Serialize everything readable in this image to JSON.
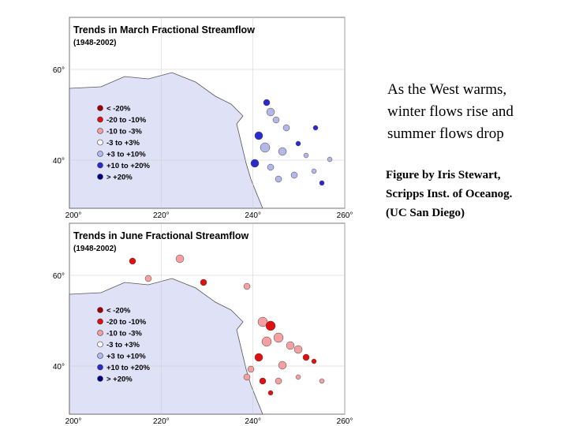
{
  "slide": {
    "heading": [
      "As the West warms,",
      "winter flows rise and",
      "summer flows drop"
    ],
    "credit": [
      "Figure by Iris Stewart,",
      "Scripps Inst. of Oceanog.",
      "(UC San Diego)"
    ]
  },
  "maps": [
    {
      "title": "Trends in March Fractional Streamflow",
      "period": "(1948-2002)",
      "legend": [
        {
          "label": "< -20%",
          "color": "#a00000"
        },
        {
          "label": "-20 to -10%",
          "color": "#e01010"
        },
        {
          "label": "-10 to -3%",
          "color": "#f4a0a0"
        },
        {
          "label": "-3 to +3%",
          "color": "#ffffff"
        },
        {
          "label": "+3 to +10%",
          "color": "#b4b8e8"
        },
        {
          "label": "+10 to +20%",
          "color": "#2a2ad0"
        },
        {
          "label": "> +20%",
          "color": "#000080"
        }
      ],
      "lat_labels": [
        "60°",
        "40°"
      ],
      "lon_labels": [
        "200°",
        "220°",
        "240°",
        "260°"
      ]
    },
    {
      "title": "Trends in June Fractional Streamflow",
      "period": "(1948-2002)",
      "legend": [
        {
          "label": "< -20%",
          "color": "#a00000"
        },
        {
          "label": "-20 to -10%",
          "color": "#e01010"
        },
        {
          "label": "-10 to -3%",
          "color": "#f4a0a0"
        },
        {
          "label": "-3 to +3%",
          "color": "#ffffff"
        },
        {
          "label": "+3 to +10%",
          "color": "#b4b8e8"
        },
        {
          "label": "+10 to +20%",
          "color": "#2a2ad0"
        },
        {
          "label": "> +20%",
          "color": "#000080"
        }
      ],
      "lat_labels": [
        "60°",
        "40°"
      ],
      "lon_labels": [
        "200°",
        "220°",
        "240°",
        "260°"
      ]
    }
  ]
}
